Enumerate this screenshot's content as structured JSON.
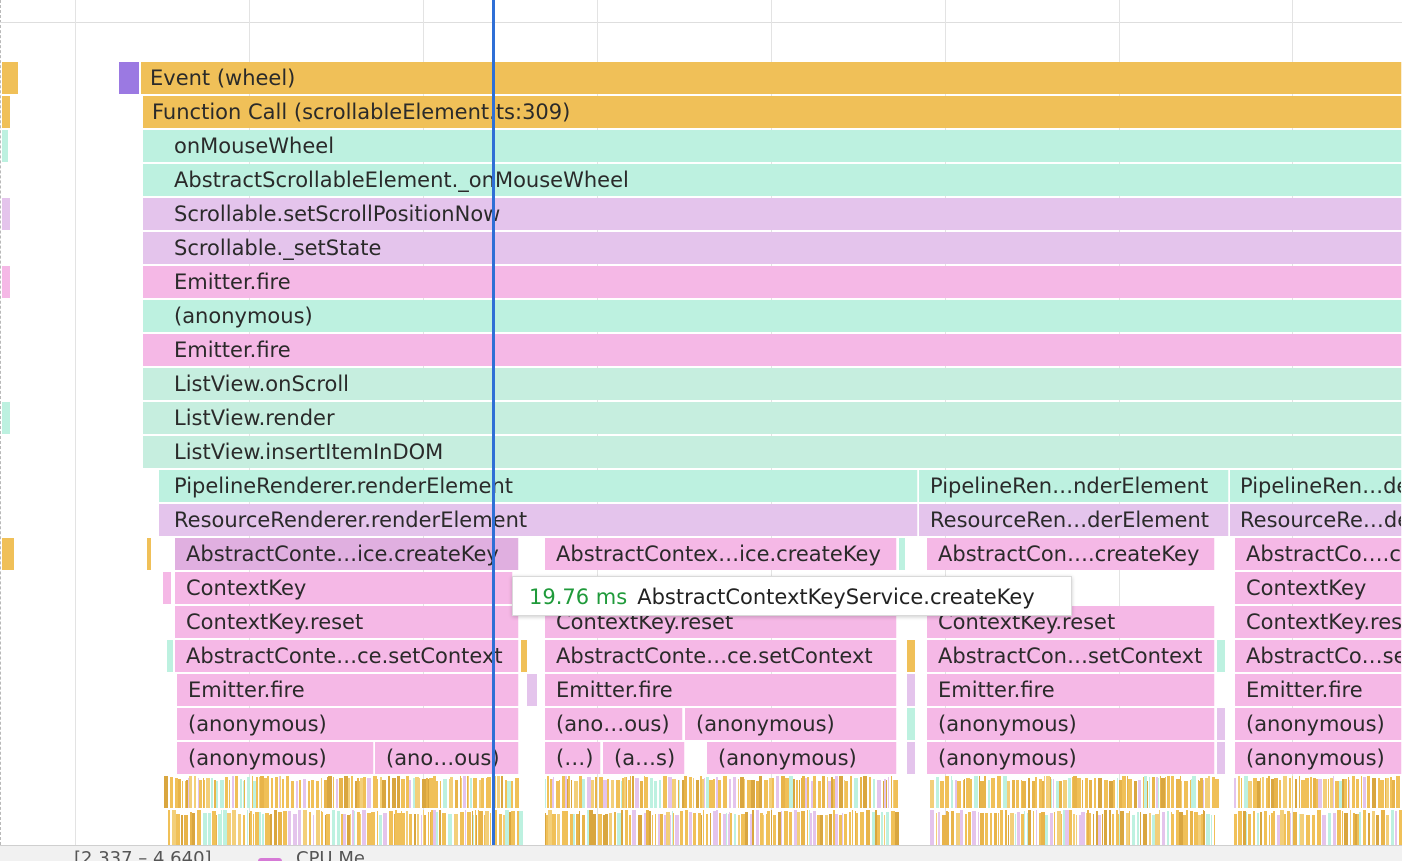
{
  "colors": {
    "event": "#f0c058",
    "event_marker": "#9b79e2",
    "teal": "#bdf1e0",
    "teal_alt": "#c6eedf",
    "lavender": "#e4c4ec",
    "pink": "#f5b8e6",
    "pink_alt": "#e9bbe9",
    "cursor": "#2f6fd6",
    "tooltip_time": "#1f9a3a"
  },
  "flame": {
    "rows": [
      {
        "label": "Event (wheel)",
        "color_key": "event"
      },
      {
        "label": "Function Call (scrollableElement.ts:309)",
        "color_key": "event"
      },
      {
        "label": "onMouseWheel",
        "color_key": "teal"
      },
      {
        "label": "AbstractScrollableElement._onMouseWheel",
        "color_key": "teal"
      },
      {
        "label": "Scrollable.setScrollPositionNow",
        "color_key": "lavender"
      },
      {
        "label": "Scrollable._setState",
        "color_key": "lavender"
      },
      {
        "label": "Emitter.fire",
        "color_key": "pink"
      },
      {
        "label": "(anonymous)",
        "color_key": "teal"
      },
      {
        "label": "Emitter.fire",
        "color_key": "pink"
      },
      {
        "label": "ListView.onScroll",
        "color_key": "teal_alt"
      },
      {
        "label": "ListView.render",
        "color_key": "teal_alt"
      },
      {
        "label": "ListView.insertItemInDOM",
        "color_key": "teal_alt"
      }
    ],
    "pipeline_row": [
      "PipelineRenderer.renderElement",
      "PipelineRen…nderElement",
      "PipelineRen…de"
    ],
    "resource_row": [
      "ResourceRenderer.renderElement",
      "ResourceRen…derElement",
      "ResourceRe…de"
    ],
    "create_key_row": [
      "AbstractConte…ice.createKey",
      "AbstractContex…ice.createKey",
      "AbstractCon….createKey",
      "AbstractCo….c"
    ],
    "context_key_row": [
      "ContextKey",
      "ContextKey"
    ],
    "reset_row": [
      "ContextKey.reset",
      "ContextKey.reset",
      "ContextKey.reset",
      "ContextKey.res"
    ],
    "set_context_row": [
      "AbstractConte…ce.setContext",
      "AbstractConte…ce.setContext",
      "AbstractCon…setContext",
      "AbstractCo…se"
    ],
    "emitter_row": [
      "Emitter.fire",
      "Emitter.fire",
      "Emitter.fire",
      "Emitter.fire"
    ],
    "anon_row_1": [
      "(anonymous)",
      "(ano…ous)",
      "(anonymous)",
      "(anonymous)",
      "(anonymous)"
    ],
    "anon_row_2": [
      "(anonymous)",
      "(ano…ous)",
      "(…)",
      "(a…s)",
      "(anonymous)",
      "(anonymous)",
      "(anonymous)"
    ]
  },
  "tooltip": {
    "time": "19.76 ms",
    "name": "AbstractContextKeyService.createKey"
  },
  "status_bar": {
    "range": "[2.337 – 4.640]",
    "cpu_label": "CPU Me"
  }
}
